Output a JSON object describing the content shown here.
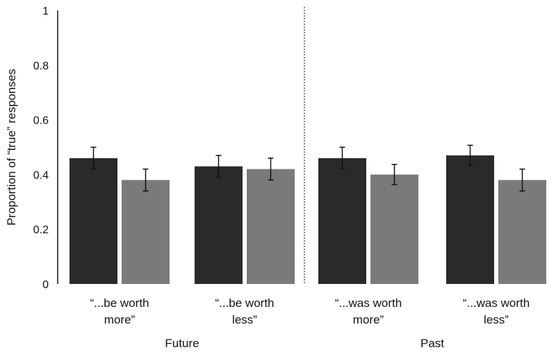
{
  "chart_data": {
    "type": "bar",
    "title": "",
    "xlabel": "",
    "ylabel": "Proportion of “true” responses",
    "ylim": [
      0,
      1
    ],
    "yticks": [
      "0",
      "0.2",
      "0.4",
      "0.6",
      "0.8",
      "1"
    ],
    "grid": false,
    "legend": null,
    "groups": [
      {
        "name": "Future",
        "categories": [
          {
            "label": [
              "“...be worth",
              "more”"
            ],
            "values": [
              0.46,
              0.38
            ],
            "errors": [
              0.04,
              0.04
            ]
          },
          {
            "label": [
              "“...be worth",
              "less”"
            ],
            "values": [
              0.43,
              0.42
            ],
            "errors": [
              0.04,
              0.04
            ]
          }
        ]
      },
      {
        "name": "Past",
        "categories": [
          {
            "label": [
              "“...was worth",
              "more”"
            ],
            "values": [
              0.46,
              0.4
            ],
            "errors": [
              0.04,
              0.037
            ]
          },
          {
            "label": [
              "“...was worth",
              "less”"
            ],
            "values": [
              0.47,
              0.38
            ],
            "errors": [
              0.037,
              0.04
            ]
          }
        ]
      }
    ],
    "series_colors": [
      "#2a2a2a",
      "#7a7a7a"
    ]
  }
}
